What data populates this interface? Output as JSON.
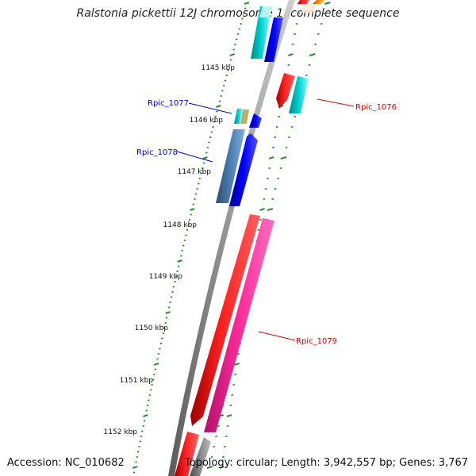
{
  "title": "Ralstonia pickettii 12J chromosome 1, complete sequence",
  "footer": {
    "accession": "Accession: NC_010682",
    "topology": "Topology: circular; Length: 3,942,557 bp; Genes: 3,767"
  },
  "kbp_labels": [
    "1145 kbp",
    "1146 kbp",
    "1147 kbp",
    "1148 kbp",
    "1149 kbp",
    "1150 kbp",
    "1151 kbp",
    "1152 kbp"
  ],
  "gene_labels": [
    {
      "name": "Rpic_1077",
      "color": "#0000cc"
    },
    {
      "name": "Rpic_1076",
      "color": "#dd0000"
    },
    {
      "name": "Rpic_1078",
      "color": "#0000cc"
    },
    {
      "name": "Rpic_1079",
      "color": "#dd0000"
    }
  ],
  "colors": {
    "backbone": "#8a8a8a",
    "tick": "#228b22",
    "gene_red": "#ff0000",
    "gene_pink": "#ff1493",
    "gene_blue": "#0000ff",
    "gene_cyan": "#00cccc",
    "gene_steel": "#4682b4",
    "gene_olive": "#9a9a2a",
    "gene_orange": "#ff8800",
    "gene_gray": "#777777"
  }
}
